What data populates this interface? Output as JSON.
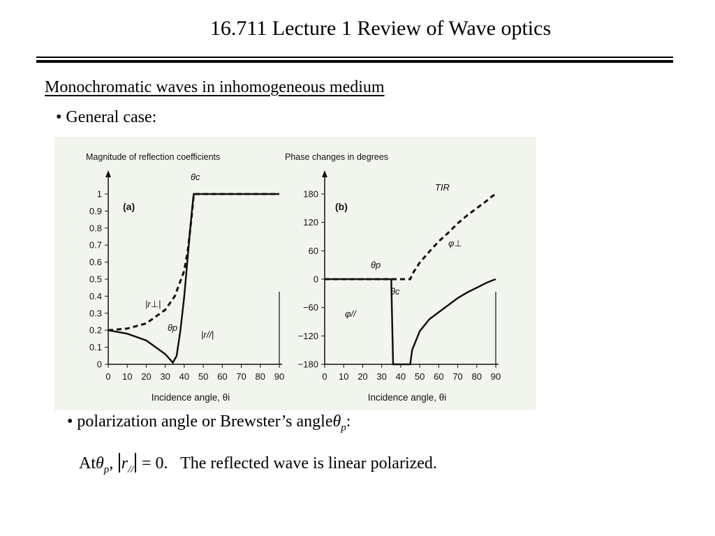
{
  "slide": {
    "title": "16.711 Lecture 1 Review of Wave optics",
    "subtitle": "Monochromatic waves in inhomogeneous medium",
    "bullet_general": "• General case:",
    "bullet_brewster": "• polarization angle or Brewster’s angle",
    "theta_symbol": "θ",
    "sub_p": "p",
    "colon": ":",
    "note": {
      "at": "At",
      "comma": ",",
      "r": "r",
      "sub_par": "//",
      "equals": "= 0.",
      "text": "The reflected wave is linear polarized."
    }
  },
  "chart_data": [
    {
      "type": "line",
      "panel_label": "(a)",
      "title": "Magnitude of reflection coefficients",
      "xlabel": "Incidence angle, θi",
      "xlim": [
        0,
        90
      ],
      "ylim": [
        0,
        1
      ],
      "x_ticks": [
        "0",
        "10",
        "20",
        "30",
        "40",
        "50",
        "60",
        "70",
        "80",
        "90"
      ],
      "y_ticks": [
        "0",
        "0.1",
        "0.2",
        "0.3",
        "0.4",
        "0.5",
        "0.6",
        "0.7",
        "0.8",
        "0.9",
        "1"
      ],
      "annotations": [
        "θc",
        "θp",
        "|r⊥|",
        "|r//|"
      ],
      "series": [
        {
          "name": "|r⊥|",
          "style": "dashed",
          "x": [
            0,
            10,
            20,
            30,
            35,
            40,
            42,
            43,
            44,
            45,
            90
          ],
          "y": [
            0.2,
            0.21,
            0.24,
            0.32,
            0.4,
            0.55,
            0.68,
            0.78,
            0.88,
            1,
            1
          ]
        },
        {
          "name": "|r//|",
          "style": "solid",
          "x": [
            0,
            10,
            20,
            30,
            34,
            36,
            38,
            40,
            42,
            43,
            44,
            45,
            90
          ],
          "y": [
            0.2,
            0.18,
            0.14,
            0.06,
            0.01,
            0.05,
            0.2,
            0.4,
            0.65,
            0.78,
            0.9,
            1,
            1
          ]
        }
      ]
    },
    {
      "type": "line",
      "panel_label": "(b)",
      "title": "Phase changes in degrees",
      "xlabel": "Incidence angle, θi",
      "xlim": [
        0,
        90
      ],
      "ylim": [
        -180,
        180
      ],
      "x_ticks": [
        "0",
        "10",
        "20",
        "30",
        "40",
        "50",
        "60",
        "70",
        "80",
        "90"
      ],
      "y_ticks": [
        "−180",
        "−120",
        "−60",
        "0",
        "60",
        "120",
        "180"
      ],
      "annotations": [
        "TIR",
        "θp",
        "θc",
        "φ⊥",
        "φ//"
      ],
      "series": [
        {
          "name": "φ⊥",
          "style": "dashed",
          "x": [
            0,
            45,
            46,
            50,
            55,
            60,
            65,
            70,
            75,
            80,
            85,
            88,
            90
          ],
          "y": [
            0,
            0,
            10,
            35,
            58,
            80,
            98,
            118,
            135,
            150,
            165,
            175,
            180
          ]
        },
        {
          "name": "φ//",
          "style": "solid",
          "x": [
            0,
            35,
            36,
            45,
            46,
            50,
            55,
            60,
            65,
            70,
            75,
            80,
            85,
            88,
            90
          ],
          "y": [
            0,
            0,
            -180,
            -180,
            -150,
            -110,
            -85,
            -70,
            -55,
            -40,
            -28,
            -18,
            -8,
            -3,
            0
          ]
        }
      ]
    }
  ]
}
